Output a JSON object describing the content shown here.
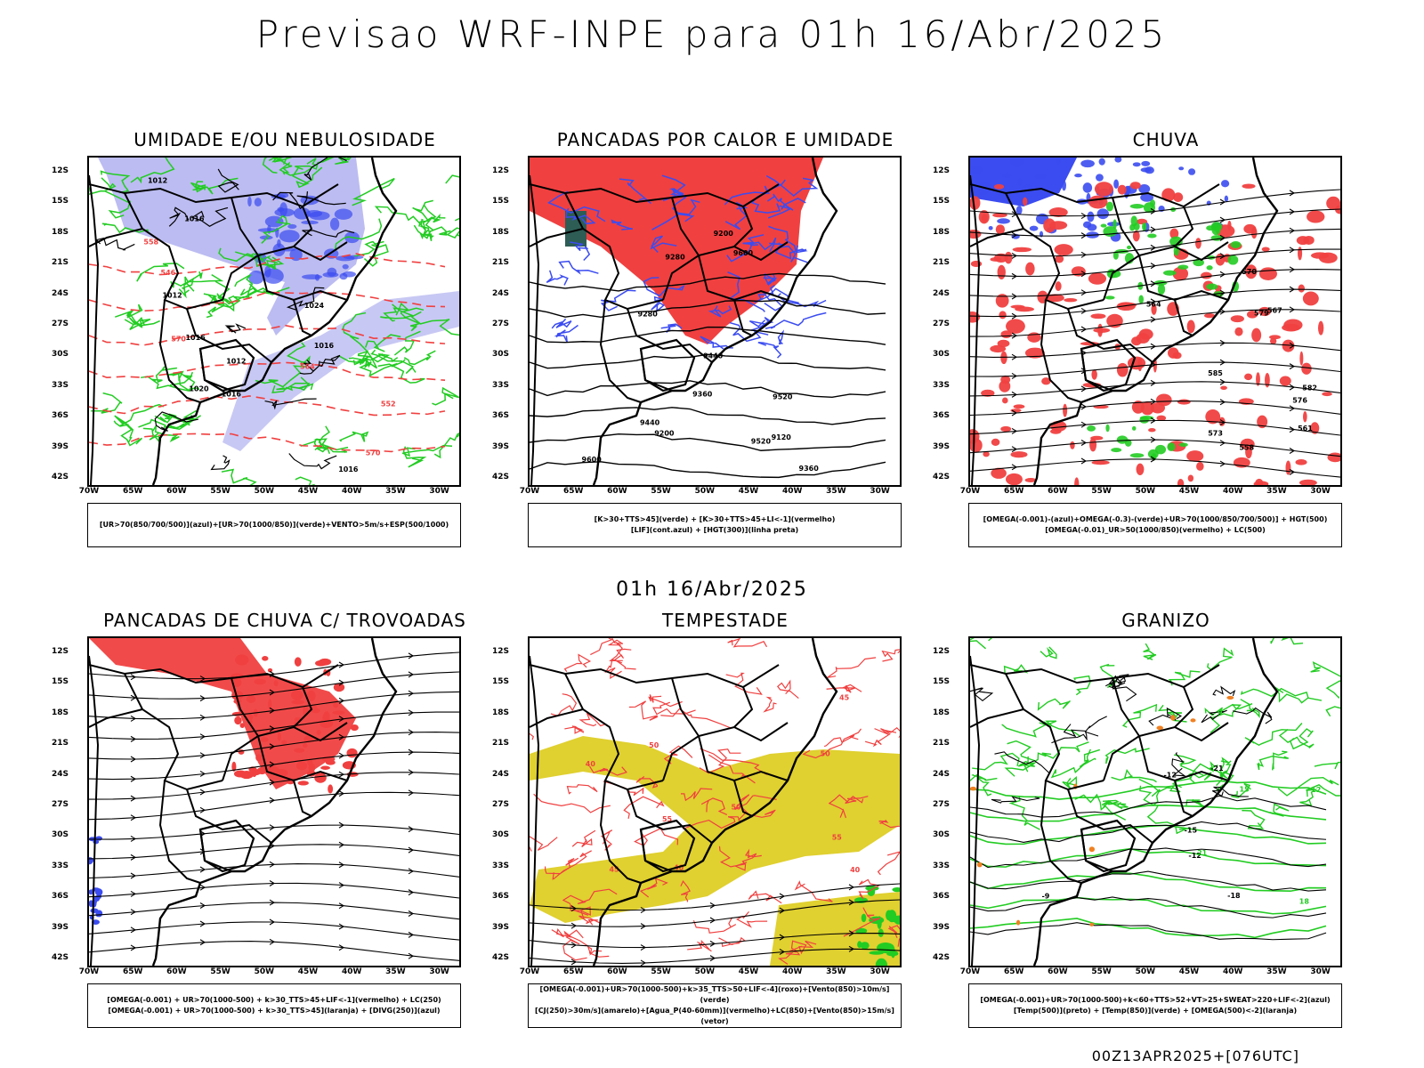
{
  "main_title": "Previsao WRF-INPE  para 01h 16/Abr/2025",
  "mid_time": "01h 16/Abr/2025",
  "footer": "00Z13APR2025+[076UTC]",
  "lat_labels": [
    "12S",
    "15S",
    "18S",
    "21S",
    "24S",
    "27S",
    "30S",
    "33S",
    "36S",
    "39S",
    "42S"
  ],
  "lon_labels": [
    "70W",
    "65W",
    "60W",
    "55W",
    "50W",
    "45W",
    "40W",
    "35W",
    "30W"
  ],
  "colors": {
    "azul": "#3b4cf0",
    "lilas": "#b0b0f0",
    "verde": "#22cc22",
    "vermelho": "#f04040",
    "amarelo": "#e0d030",
    "laranja": "#f08020"
  },
  "panels": [
    {
      "key": "umidade",
      "title": "UMIDADE E/OU NEBULOSIDADE",
      "legend": [
        "[UR>70(850/700/500)](azul)+[UR>70(1000/850)](verde)+VENTO>5m/s+ESP(500/1000)"
      ],
      "contour_labels": [
        "1012",
        "1012",
        "1012",
        "1016",
        "1016",
        "1016",
        "1016",
        "1016",
        "1020",
        "1024",
        "570",
        "570",
        "564",
        "558",
        "552",
        "546"
      ]
    },
    {
      "key": "pancadas",
      "title": "PANCADAS POR CALOR E UMIDADE",
      "legend": [
        "[K>30+TTS>45](verde) + [K>30+TTS>45+LI<-1](vermelho)",
        "[LIF](cont.azul) + [HGT(300)](linha preta)"
      ],
      "contour_labels": [
        "9600",
        "9520",
        "9440",
        "9360",
        "9280",
        "9200",
        "9120",
        "9600",
        "9520",
        "9440",
        "9360",
        "9280",
        "9200"
      ]
    },
    {
      "key": "chuva",
      "title": "CHUVA",
      "legend": [
        "[OMEGA(-0.001)-(azul)+OMEGA(-0.3)-(verde)+UR>70(1000/850/700/500)] + HGT(500)",
        "[OMEGA(-0.01)_UR>50(1000/850)(vermelho) + LC(500)"
      ],
      "contour_labels": [
        "585",
        "582",
        "579",
        "576",
        "573",
        "570",
        "567",
        "564",
        "561",
        "558"
      ]
    },
    {
      "key": "trovoadas",
      "title": "PANCADAS DE CHUVA C/ TROVOADAS",
      "legend": [
        "[OMEGA(-0.001) + UR>70(1000-500) + k>30_TTS>45+LIF<-1](vermelho) + LC(250)",
        "[OMEGA(-0.001) + UR>70(1000-500) + k>30_TTS>45](laranja) + [DIVG(250)](azul)"
      ],
      "contour_labels": []
    },
    {
      "key": "tempestade",
      "title": "TEMPESTADE",
      "legend": [
        "[OMEGA(-0.001)+UR>70(1000-500)+k>35_TTS>50+LIF<-4](roxo)+[Vento(850)>10m/s](verde)",
        "[CJ(250)>30m/s](amarelo)+[Agua_P(40-60mm)](vermelho)+LC(850)+[Vento(850)>15m/s](vetor)"
      ],
      "contour_labels": [
        "40",
        "45",
        "50",
        "55",
        "50",
        "40",
        "45",
        "50",
        "55",
        "40"
      ]
    },
    {
      "key": "granizo",
      "title": "GRANIZO",
      "legend": [
        "[OMEGA(-0.001)+UR>70(1000-500)+k<60+TTS>52+VT>25+SWEAT>220+LIF<-2](azul)",
        "[Temp(500)](preto) + [Temp(850)](verde) + [OMEGA(500)<-2](laranja)"
      ],
      "contour_labels": [
        "-9",
        "-12",
        "-12",
        "-15",
        "-18",
        "-21",
        "9",
        "12",
        "15",
        "18",
        "21"
      ]
    }
  ]
}
